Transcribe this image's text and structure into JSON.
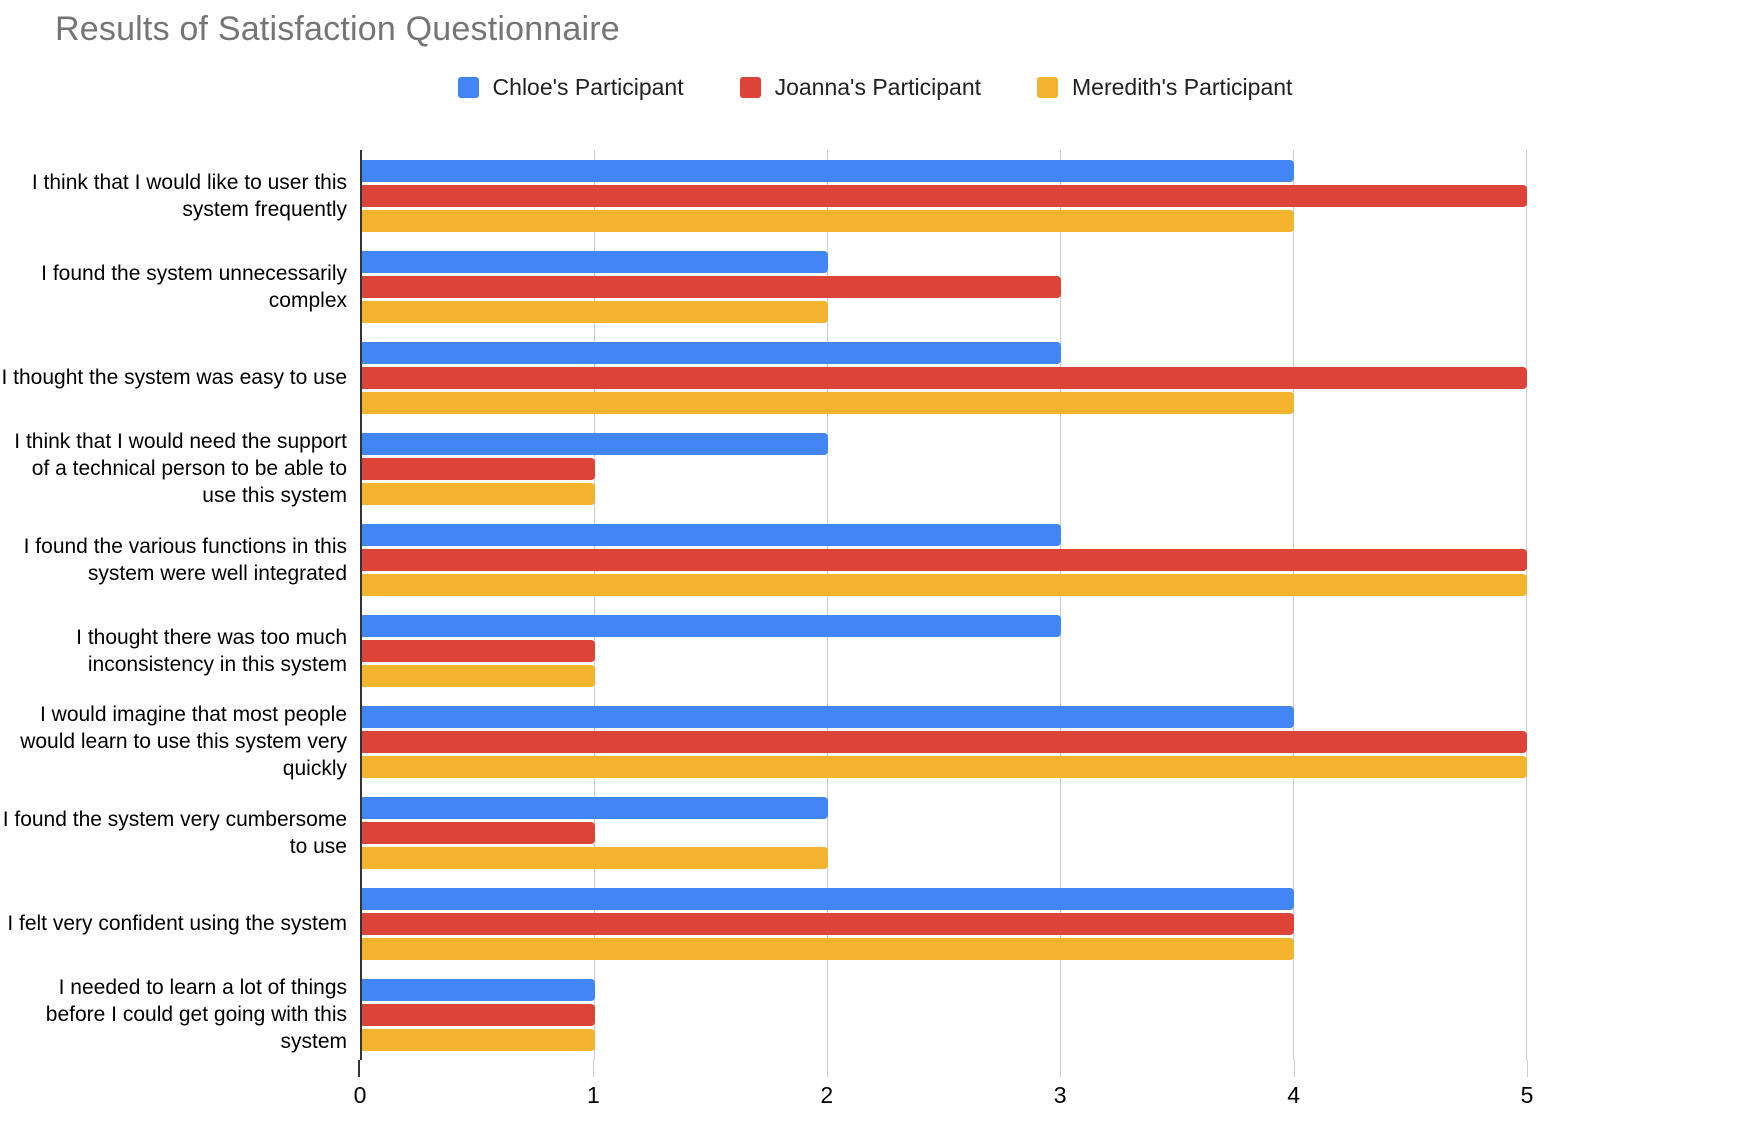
{
  "title": "Results of Satisfaction Questionnaire",
  "colors": {
    "blue": "#4285F4",
    "red": "#DB4437",
    "yellow": "#F2B42D",
    "title_gray": "#757575",
    "axis": "#333333",
    "gridline": "#CCCCCC"
  },
  "chart_data": {
    "type": "bar",
    "orientation": "horizontal",
    "title": "Results of Satisfaction Questionnaire",
    "legend_position": "top",
    "grid": true,
    "xlim": [
      0,
      5
    ],
    "x_ticks": [
      0,
      1,
      2,
      3,
      4,
      5
    ],
    "categories": [
      "I think that I would like to user this system frequently",
      "I found the system unnecessarily complex",
      "I thought the system was easy to use",
      "I think that I would need the support of a technical person to be able to use this system",
      "I found the various functions in this system were well integrated",
      "I thought there was too much inconsistency in this system",
      "I would imagine that most people would learn to use this system very quickly",
      "I found the system very cumbersome to use",
      "I felt very confident using the system",
      "I needed to learn a lot of things before I could get going with this system"
    ],
    "series": [
      {
        "name": "Chloe's Participant",
        "color": "#4285F4",
        "values": [
          4,
          2,
          3,
          2,
          3,
          3,
          4,
          2,
          4,
          1
        ]
      },
      {
        "name": "Joanna's Participant",
        "color": "#DB4437",
        "values": [
          5,
          3,
          5,
          1,
          5,
          1,
          5,
          1,
          4,
          1
        ]
      },
      {
        "name": "Meredith's Participant",
        "color": "#F2B42D",
        "values": [
          4,
          2,
          4,
          1,
          5,
          1,
          5,
          2,
          4,
          1
        ]
      }
    ]
  }
}
